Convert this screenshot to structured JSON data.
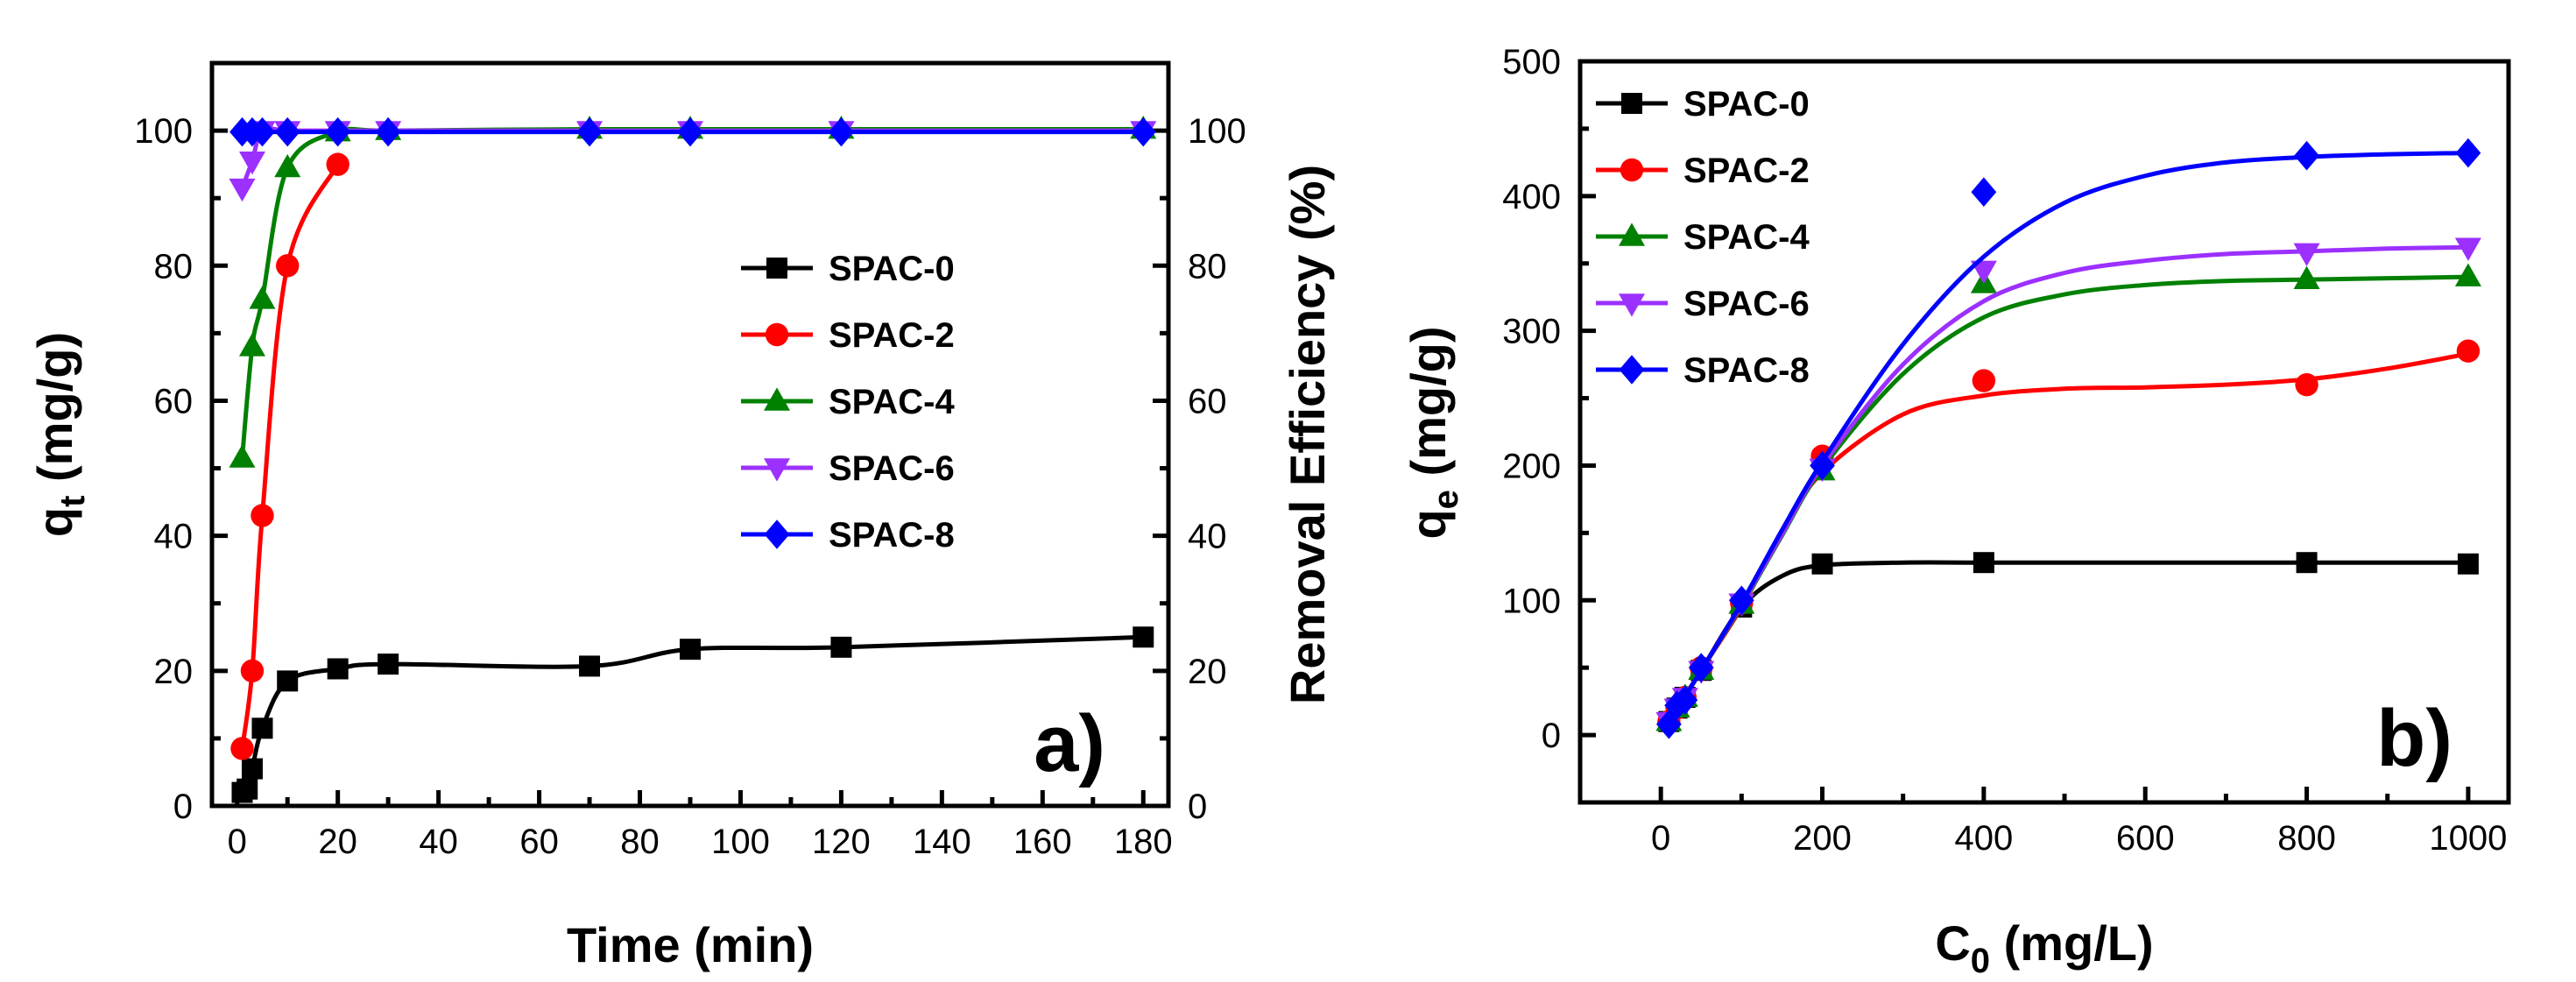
{
  "chart_data": [
    {
      "type": "line",
      "panel_label": "a)",
      "xlabel": "Time (min)",
      "ylabel": "q",
      "ylabel_sub": "t",
      "ylabel_unit": " (mg/g)",
      "y2label": "Removal Efficiency (%)",
      "xlim": [
        -5,
        185
      ],
      "ylim": [
        0,
        110
      ],
      "y2lim": [
        0,
        110
      ],
      "xticks": [
        0,
        20,
        40,
        60,
        80,
        100,
        120,
        140,
        160,
        180
      ],
      "yticks": [
        0,
        20,
        40,
        60,
        80,
        100
      ],
      "y2ticks": [
        0,
        20,
        40,
        60,
        80,
        100
      ],
      "legend_position": "center-right",
      "series": [
        {
          "name": "SPAC-0",
          "color": "#000000",
          "marker": "square",
          "x": [
            1,
            2,
            3,
            5,
            10,
            20,
            30,
            70,
            90,
            120,
            180
          ],
          "y": [
            2,
            2.5,
            5.5,
            11.5,
            18.5,
            20.3,
            21,
            20.7,
            23.2,
            23.5,
            25
          ]
        },
        {
          "name": "SPAC-2",
          "color": "#ff0000",
          "marker": "circle",
          "x": [
            1,
            3,
            5,
            10,
            20
          ],
          "y": [
            8.5,
            20,
            43,
            80,
            95
          ]
        },
        {
          "name": "SPAC-4",
          "color": "#008000",
          "marker": "triangle-up",
          "x": [
            1,
            3,
            5,
            10,
            20,
            30,
            70,
            90,
            120,
            180
          ],
          "y": [
            51.5,
            68,
            75,
            94.5,
            99.8,
            100,
            100.2,
            100.2,
            100.2,
            100.2
          ]
        },
        {
          "name": "SPAC-6",
          "color": "#9b30ff",
          "marker": "triangle-down",
          "x": [
            1,
            3,
            5,
            10,
            20,
            30,
            70,
            90,
            120,
            180
          ],
          "y": [
            91.5,
            95.5,
            100,
            100,
            100,
            100,
            100,
            100,
            100,
            100
          ]
        },
        {
          "name": "SPAC-8",
          "color": "#0000ff",
          "marker": "diamond",
          "x": [
            1,
            3,
            5,
            10,
            20,
            30,
            70,
            90,
            120,
            180
          ],
          "y": [
            99.8,
            99.8,
            99.8,
            99.8,
            99.8,
            99.8,
            99.8,
            99.8,
            99.8,
            99.8
          ]
        }
      ]
    },
    {
      "type": "line",
      "panel_label": "b)",
      "xlabel": "C",
      "xlabel_sub": "0",
      "xlabel_unit": " (mg/L)",
      "ylabel": "q",
      "ylabel_sub": "e",
      "ylabel_unit": " (mg/g)",
      "xlim": [
        -100,
        1050
      ],
      "ylim": [
        -50,
        500
      ],
      "xticks": [
        0,
        200,
        400,
        600,
        800,
        1000
      ],
      "yticks": [
        0,
        100,
        200,
        300,
        400,
        500
      ],
      "legend_position": "top-left",
      "series": [
        {
          "name": "SPAC-0",
          "color": "#000000",
          "marker": "square",
          "x": [
            10,
            20,
            30,
            50,
            100,
            200,
            400,
            800,
            1000
          ],
          "y": [
            10,
            20,
            28,
            48,
            95,
            127,
            128,
            128,
            127
          ],
          "fit": [
            [
              5,
              5
            ],
            [
              50,
              48
            ],
            [
              100,
              95
            ],
            [
              150,
              118
            ],
            [
              200,
              126
            ],
            [
              300,
              128
            ],
            [
              400,
              128
            ],
            [
              600,
              128
            ],
            [
              800,
              128
            ],
            [
              1000,
              128
            ]
          ]
        },
        {
          "name": "SPAC-2",
          "color": "#ff0000",
          "marker": "circle",
          "x": [
            10,
            20,
            30,
            50,
            100,
            200,
            400,
            800,
            1000
          ],
          "y": [
            10,
            20,
            28,
            50,
            98,
            207,
            263,
            260,
            285
          ],
          "fit": [
            [
              5,
              5
            ],
            [
              50,
              48
            ],
            [
              100,
              95
            ],
            [
              150,
              150
            ],
            [
              200,
              195
            ],
            [
              300,
              238
            ],
            [
              400,
              252
            ],
            [
              500,
              257
            ],
            [
              600,
              258
            ],
            [
              700,
              260
            ],
            [
              800,
              264
            ],
            [
              900,
              272
            ],
            [
              1000,
              283
            ]
          ]
        },
        {
          "name": "SPAC-4",
          "color": "#008000",
          "marker": "triangle-up",
          "x": [
            10,
            20,
            30,
            50,
            100,
            200,
            400,
            800,
            1000
          ],
          "y": [
            10,
            20,
            28,
            48,
            97,
            196,
            335,
            338,
            340
          ],
          "fit": [
            [
              5,
              5
            ],
            [
              50,
              48
            ],
            [
              100,
              96
            ],
            [
              150,
              148
            ],
            [
              200,
              198
            ],
            [
              300,
              268
            ],
            [
              400,
              310
            ],
            [
              500,
              327
            ],
            [
              600,
              334
            ],
            [
              700,
              337
            ],
            [
              800,
              338
            ],
            [
              900,
              339
            ],
            [
              1000,
              340
            ]
          ]
        },
        {
          "name": "SPAC-6",
          "color": "#9b30ff",
          "marker": "triangle-down",
          "x": [
            10,
            20,
            30,
            50,
            100,
            200,
            400,
            800,
            1000
          ],
          "y": [
            10,
            20,
            28,
            48,
            98,
            198,
            345,
            358,
            362
          ],
          "fit": [
            [
              5,
              5
            ],
            [
              50,
              48
            ],
            [
              100,
              97
            ],
            [
              150,
              149
            ],
            [
              200,
              200
            ],
            [
              300,
              275
            ],
            [
              400,
              322
            ],
            [
              500,
              343
            ],
            [
              600,
              352
            ],
            [
              700,
              357
            ],
            [
              800,
              359
            ],
            [
              900,
              361
            ],
            [
              1000,
              362
            ]
          ]
        },
        {
          "name": "SPAC-8",
          "color": "#0000ff",
          "marker": "diamond",
          "x": [
            10,
            20,
            30,
            50,
            100,
            200,
            400,
            800,
            1000
          ],
          "y": [
            8,
            22,
            26,
            50,
            100,
            200,
            403,
            430,
            432
          ],
          "fit": [
            [
              5,
              5
            ],
            [
              50,
              48
            ],
            [
              100,
              98
            ],
            [
              150,
              152
            ],
            [
              200,
              203
            ],
            [
              300,
              290
            ],
            [
              400,
              355
            ],
            [
              500,
              395
            ],
            [
              600,
              415
            ],
            [
              700,
              425
            ],
            [
              800,
              429
            ],
            [
              900,
              431
            ],
            [
              1000,
              432
            ]
          ]
        }
      ]
    }
  ]
}
